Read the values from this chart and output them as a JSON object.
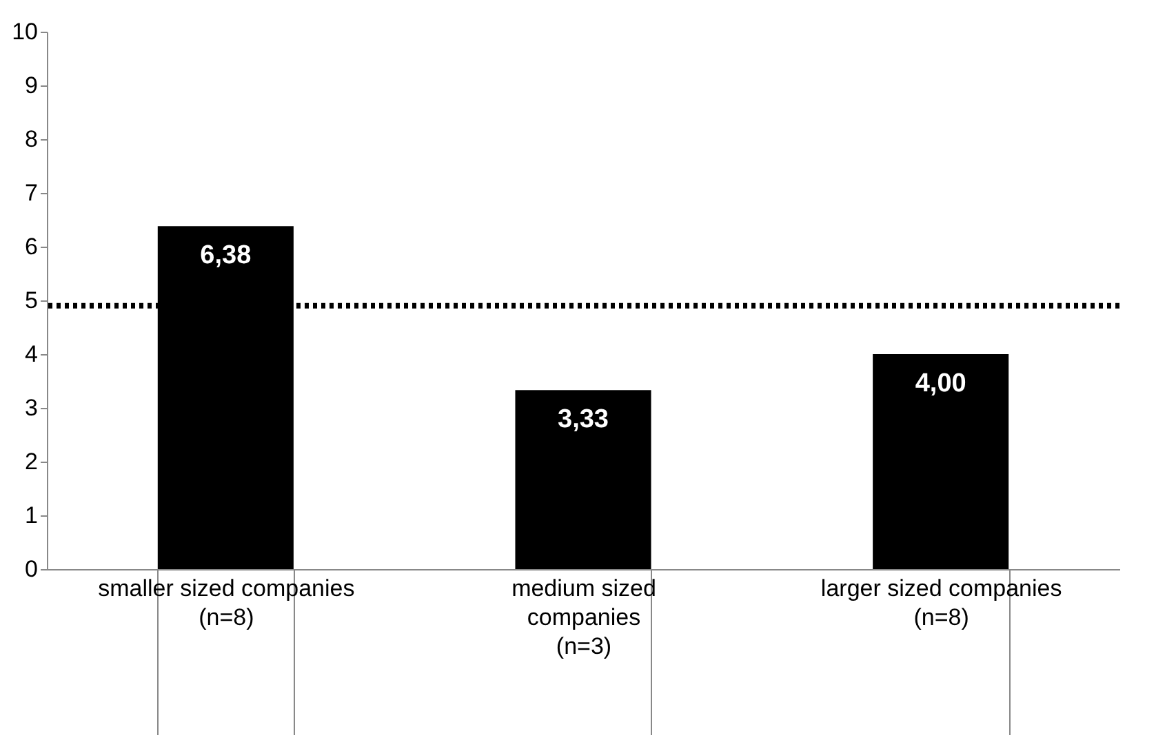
{
  "chart_data": {
    "type": "bar",
    "categories": [
      "smaller sized companies\n\n\n(n=8)",
      "medium sized\ncompanies\n\n(n=3)",
      "larger sized companies\n\n\n(n=8)"
    ],
    "values": [
      6.38,
      3.33,
      4.0
    ],
    "value_labels": [
      "6,38",
      "3,33",
      "4,00"
    ],
    "color": "#000000",
    "ylim": [
      0,
      10
    ],
    "yticks": [
      0,
      1,
      2,
      3,
      4,
      5,
      6,
      7,
      8,
      9,
      10
    ],
    "grid": false,
    "ref_lines": [
      {
        "axis": "y",
        "value": 4.9,
        "color": "#000000",
        "line_style": "dotted"
      }
    ]
  }
}
